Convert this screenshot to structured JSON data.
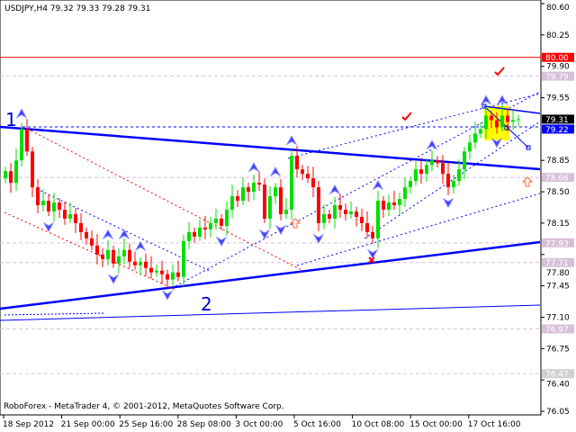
{
  "header": {
    "symbol_info": "USDJPY,H4  79.32 79.33 79.28 79.31"
  },
  "footer": {
    "copyright": "RoboForex - MetaTrader 4, © 2001-2012, MetaQuotes Software Corp."
  },
  "wave_labels": [
    "1",
    "2"
  ],
  "chart_data": {
    "type": "candlestick",
    "symbol": "USDJPY",
    "timeframe": "H4",
    "last_ohlc": {
      "open": 79.32,
      "high": 79.33,
      "low": 79.28,
      "close": 79.31
    },
    "ylim": [
      76.05,
      80.6
    ],
    "y_ticks": [
      "80.60",
      "80.25",
      "79.90",
      "79.55",
      "78.85",
      "78.50",
      "78.15",
      "77.80",
      "77.45",
      "77.10",
      "76.75",
      "76.40",
      "76.05"
    ],
    "x_ticks": [
      "18 Sep 2012",
      "21 Sep 00:00",
      "25 Sep 16:00",
      "28 Sep 08:00",
      "3 Oct 00:00",
      "5 Oct 16:00",
      "10 Oct 08:00",
      "15 Oct 00:00",
      "17 Oct 16:00"
    ],
    "closes": [
      78.73,
      78.6,
      78.85,
      79.2,
      78.95,
      78.55,
      78.35,
      78.4,
      78.28,
      78.38,
      78.3,
      78.2,
      78.25,
      78.15,
      78.05,
      77.98,
      77.9,
      77.8,
      77.75,
      77.85,
      77.7,
      77.78,
      77.85,
      77.72,
      77.68,
      77.72,
      77.65,
      77.6,
      77.62,
      77.58,
      77.52,
      77.6,
      77.55,
      77.95,
      78.05,
      78.0,
      78.1,
      78.08,
      78.15,
      78.2,
      78.12,
      78.3,
      78.45,
      78.4,
      78.55,
      78.5,
      78.6,
      78.58,
      78.2,
      78.45,
      78.55,
      78.25,
      78.3,
      78.9,
      78.75,
      78.7,
      78.65,
      78.55,
      78.15,
      78.25,
      78.2,
      78.35,
      78.3,
      78.25,
      78.28,
      78.22,
      78.15,
      78.05,
      77.98,
      78.4,
      78.3,
      78.38,
      78.35,
      78.42,
      78.55,
      78.62,
      78.75,
      78.7,
      78.8,
      78.85,
      78.82,
      78.7,
      78.55,
      78.62,
      78.75,
      78.95,
      79.05,
      79.15,
      79.2,
      79.35,
      79.3,
      79.22,
      79.35,
      79.28,
      79.3,
      79.31
    ],
    "price_tags": [
      {
        "value": "80.00",
        "bg": "#ff0000",
        "fg": "#ffffff"
      },
      {
        "value": "79.79",
        "bg": "#d8c0d8",
        "fg": "#ffffff"
      },
      {
        "value": "79.31",
        "bg": "#000000",
        "fg": "#ffffff"
      },
      {
        "value": "79.22",
        "bg": "#0000ff",
        "fg": "#ffffff"
      },
      {
        "value": "78.66",
        "bg": "#d8c0d8",
        "fg": "#ffffff"
      },
      {
        "value": "77.93",
        "bg": "#d8c0d8",
        "fg": "#ffffff"
      },
      {
        "value": "77.71",
        "bg": "#d8c0d8",
        "fg": "#ffffff"
      },
      {
        "value": "76.97",
        "bg": "#d8c0d8",
        "fg": "#ffffff"
      },
      {
        "value": "76.47",
        "bg": "#d0d0d0",
        "fg": "#ffffff"
      }
    ],
    "colors": {
      "bull": "#00e000",
      "bear": "#ff0000",
      "trend": "#0000ff",
      "level": "#d8c0d8",
      "highlight": "#ffff00"
    },
    "grid": false
  }
}
